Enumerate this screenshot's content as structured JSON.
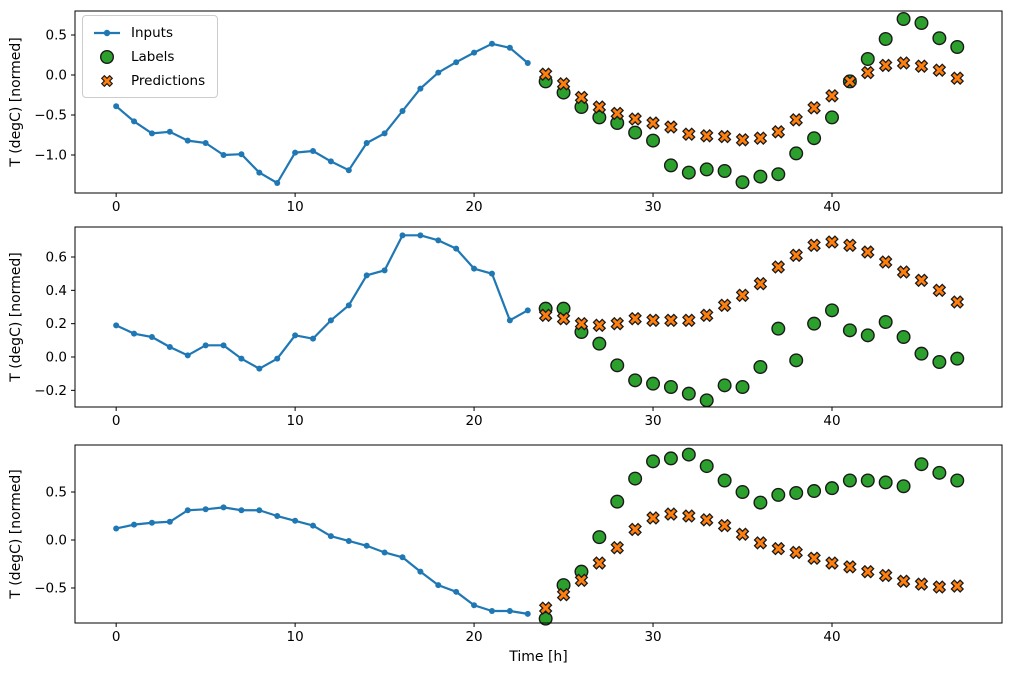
{
  "figure": {
    "background": "#ffffff",
    "axis_color": "#000000",
    "xlabel": "Time [h]",
    "ylabel": "T (degC) [normed]"
  },
  "legend": {
    "position": "upper-left",
    "items": [
      {
        "label": "Inputs",
        "marker": "line-dot",
        "color": "#1f77b4"
      },
      {
        "label": "Labels",
        "marker": "circle",
        "color": "#2ca02c"
      },
      {
        "label": "Predictions",
        "marker": "thick-x",
        "color": "#ff7f0e"
      }
    ]
  },
  "chart_data": [
    {
      "type": "line",
      "title": "",
      "xlabel": "",
      "ylabel": "T (degC) [normed]",
      "xlim": [
        -2.3,
        49.5
      ],
      "ylim": [
        -1.475,
        0.8
      ],
      "xticks": [
        0,
        10,
        20,
        30,
        40
      ],
      "yticks": [
        0.5,
        0.0,
        -0.5,
        -1.0
      ],
      "grid": false,
      "legend_visible": true,
      "series": [
        {
          "name": "Inputs",
          "plot": "line",
          "marker": "dot",
          "color": "#1f77b4",
          "x": [
            0,
            1,
            2,
            3,
            4,
            5,
            6,
            7,
            8,
            9,
            10,
            11,
            12,
            13,
            14,
            15,
            16,
            17,
            18,
            19,
            20,
            21,
            22,
            23
          ],
          "values": [
            -0.39,
            -0.58,
            -0.73,
            -0.71,
            -0.82,
            -0.85,
            -1.0,
            -0.99,
            -1.22,
            -1.35,
            -0.97,
            -0.95,
            -1.08,
            -1.19,
            -0.85,
            -0.73,
            -0.45,
            -0.17,
            0.03,
            0.16,
            0.28,
            0.39,
            0.34,
            0.15
          ]
        },
        {
          "name": "Labels",
          "plot": "scatter",
          "marker": "circle",
          "color": "#2ca02c",
          "edge": "#1a1a1a",
          "x": [
            24,
            25,
            26,
            27,
            28,
            29,
            30,
            31,
            32,
            33,
            34,
            35,
            36,
            37,
            38,
            39,
            40,
            41,
            42,
            43,
            44,
            45,
            46,
            47
          ],
          "values": [
            -0.08,
            -0.22,
            -0.4,
            -0.53,
            -0.6,
            -0.72,
            -0.82,
            -1.13,
            -1.22,
            -1.18,
            -1.2,
            -1.34,
            -1.27,
            -1.24,
            -0.98,
            -0.79,
            -0.53,
            -0.08,
            0.2,
            0.45,
            0.7,
            0.65,
            0.46,
            0.35
          ]
        },
        {
          "name": "Predictions",
          "plot": "scatter",
          "marker": "thick-x",
          "color": "#ff7f0e",
          "edge": "#1a1a1a",
          "x": [
            24,
            25,
            26,
            27,
            28,
            29,
            30,
            31,
            32,
            33,
            34,
            35,
            36,
            37,
            38,
            39,
            40,
            41,
            42,
            43,
            44,
            45,
            46,
            47
          ],
          "values": [
            0.01,
            -0.11,
            -0.28,
            -0.4,
            -0.48,
            -0.55,
            -0.6,
            -0.65,
            -0.74,
            -0.76,
            -0.77,
            -0.81,
            -0.79,
            -0.71,
            -0.56,
            -0.41,
            -0.26,
            -0.08,
            0.03,
            0.12,
            0.15,
            0.11,
            0.06,
            -0.04
          ]
        }
      ]
    },
    {
      "type": "line",
      "title": "",
      "xlabel": "",
      "ylabel": "T (degC) [normed]",
      "xlim": [
        -2.3,
        49.5
      ],
      "ylim": [
        -0.3,
        0.78
      ],
      "xticks": [
        0,
        10,
        20,
        30,
        40
      ],
      "yticks": [
        0.6,
        0.4,
        0.2,
        0.0,
        -0.2
      ],
      "grid": false,
      "legend_visible": false,
      "series": [
        {
          "name": "Inputs",
          "plot": "line",
          "marker": "dot",
          "color": "#1f77b4",
          "x": [
            0,
            1,
            2,
            3,
            4,
            5,
            6,
            7,
            8,
            9,
            10,
            11,
            12,
            13,
            14,
            15,
            16,
            17,
            18,
            19,
            20,
            21,
            22,
            23
          ],
          "values": [
            0.19,
            0.14,
            0.12,
            0.06,
            0.01,
            0.07,
            0.07,
            -0.01,
            -0.07,
            -0.01,
            0.13,
            0.11,
            0.22,
            0.31,
            0.49,
            0.52,
            0.73,
            0.73,
            0.7,
            0.65,
            0.53,
            0.5,
            0.22,
            0.28
          ]
        },
        {
          "name": "Labels",
          "plot": "scatter",
          "marker": "circle",
          "color": "#2ca02c",
          "edge": "#1a1a1a",
          "x": [
            24,
            25,
            26,
            27,
            28,
            29,
            30,
            31,
            32,
            33,
            34,
            35,
            36,
            37,
            38,
            39,
            40,
            41,
            42,
            43,
            44,
            45,
            46,
            47
          ],
          "values": [
            0.29,
            0.29,
            0.15,
            0.08,
            -0.05,
            -0.14,
            -0.16,
            -0.18,
            -0.22,
            -0.26,
            -0.17,
            -0.18,
            -0.06,
            0.17,
            -0.02,
            0.2,
            0.28,
            0.16,
            0.13,
            0.21,
            0.12,
            0.02,
            -0.03,
            -0.01
          ]
        },
        {
          "name": "Predictions",
          "plot": "scatter",
          "marker": "thick-x",
          "color": "#ff7f0e",
          "edge": "#1a1a1a",
          "x": [
            24,
            25,
            26,
            27,
            28,
            29,
            30,
            31,
            32,
            33,
            34,
            35,
            36,
            37,
            38,
            39,
            40,
            41,
            42,
            43,
            44,
            45,
            46,
            47
          ],
          "values": [
            0.25,
            0.23,
            0.2,
            0.19,
            0.2,
            0.23,
            0.22,
            0.22,
            0.22,
            0.25,
            0.31,
            0.37,
            0.44,
            0.54,
            0.61,
            0.67,
            0.69,
            0.67,
            0.63,
            0.57,
            0.51,
            0.46,
            0.4,
            0.33
          ]
        }
      ]
    },
    {
      "type": "line",
      "title": "",
      "xlabel": "Time [h]",
      "ylabel": "T (degC) [normed]",
      "xlim": [
        -2.3,
        49.5
      ],
      "ylim": [
        -0.865,
        0.99
      ],
      "xticks": [
        0,
        10,
        20,
        30,
        40
      ],
      "yticks": [
        0.5,
        0.0,
        -0.5
      ],
      "grid": false,
      "legend_visible": false,
      "series": [
        {
          "name": "Inputs",
          "plot": "line",
          "marker": "dot",
          "color": "#1f77b4",
          "x": [
            0,
            1,
            2,
            3,
            4,
            5,
            6,
            7,
            8,
            9,
            10,
            11,
            12,
            13,
            14,
            15,
            16,
            17,
            18,
            19,
            20,
            21,
            22,
            23
          ],
          "values": [
            0.12,
            0.16,
            0.18,
            0.19,
            0.31,
            0.32,
            0.34,
            0.31,
            0.31,
            0.25,
            0.2,
            0.15,
            0.04,
            -0.01,
            -0.06,
            -0.13,
            -0.18,
            -0.33,
            -0.47,
            -0.54,
            -0.68,
            -0.74,
            -0.74,
            -0.77
          ]
        },
        {
          "name": "Labels",
          "plot": "scatter",
          "marker": "circle",
          "color": "#2ca02c",
          "edge": "#1a1a1a",
          "x": [
            24,
            25,
            26,
            27,
            28,
            29,
            30,
            31,
            32,
            33,
            34,
            35,
            36,
            37,
            38,
            39,
            40,
            41,
            42,
            43,
            44,
            45,
            46,
            47
          ],
          "values": [
            -0.82,
            -0.47,
            -0.33,
            0.03,
            0.4,
            0.64,
            0.82,
            0.85,
            0.89,
            0.77,
            0.62,
            0.5,
            0.39,
            0.47,
            0.49,
            0.51,
            0.54,
            0.62,
            0.62,
            0.6,
            0.56,
            0.79,
            0.7,
            0.62
          ]
        },
        {
          "name": "Predictions",
          "plot": "scatter",
          "marker": "thick-x",
          "color": "#ff7f0e",
          "edge": "#1a1a1a",
          "x": [
            24,
            25,
            26,
            27,
            28,
            29,
            30,
            31,
            32,
            33,
            34,
            35,
            36,
            37,
            38,
            39,
            40,
            41,
            42,
            43,
            44,
            45,
            46,
            47
          ],
          "values": [
            -0.71,
            -0.57,
            -0.42,
            -0.24,
            -0.08,
            0.11,
            0.23,
            0.27,
            0.25,
            0.21,
            0.15,
            0.06,
            -0.03,
            -0.09,
            -0.13,
            -0.19,
            -0.24,
            -0.28,
            -0.33,
            -0.37,
            -0.43,
            -0.46,
            -0.49,
            -0.48
          ]
        }
      ]
    }
  ]
}
